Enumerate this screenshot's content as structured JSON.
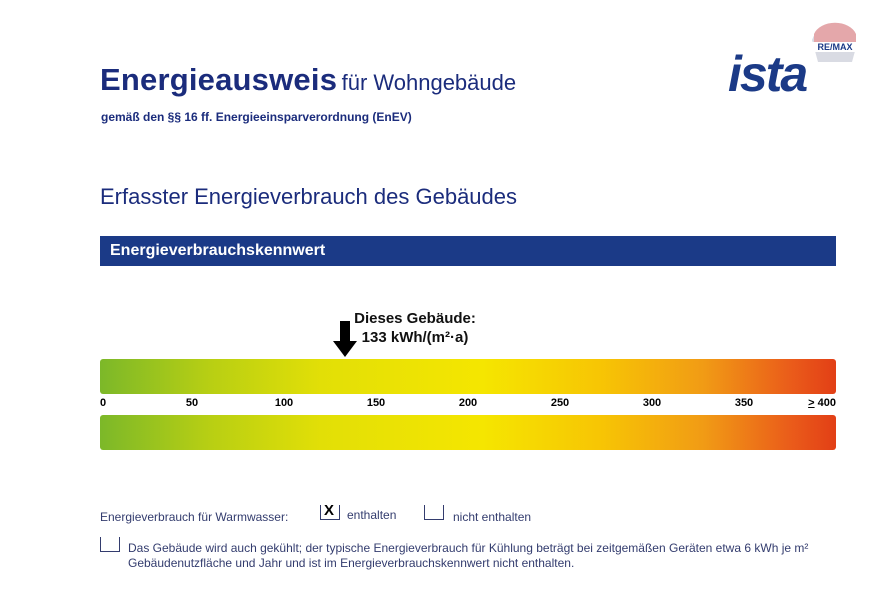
{
  "header": {
    "title_main": "Energieausweis",
    "title_rest": "für Wohngebäude",
    "subtitle": "gemäß den §§ 16 ff. Energieeinsparverordnung (EnEV)",
    "logo_text": "ista",
    "logo_badge": "RE/MAX"
  },
  "section": {
    "title": "Erfasster Energieverbrauch des Gebäudes",
    "bar_title": "Energieverbrauchskennwert"
  },
  "indicator": {
    "label": "Dieses Gebäude:",
    "value_text": "133 kWh/(m²·a)",
    "value": 133
  },
  "scale": {
    "min": 0,
    "max": 400,
    "ticks": [
      "0",
      "50",
      "100",
      "150",
      "200",
      "250",
      "300",
      "350"
    ],
    "last_prefix": ">",
    "last_tick": " 400",
    "colors": [
      "#7cb829",
      "#f5e600",
      "#e23f16"
    ]
  },
  "warmwasser": {
    "label": "Energieverbrauch für Warmwasser:",
    "option_yes_mark": "X",
    "option_yes": "enthalten",
    "option_no": "nicht enthalten",
    "selected": "enthalten"
  },
  "cooling": {
    "text": "Das Gebäude wird auch gekühlt; der typische Energieverbrauch für Kühlung beträgt bei zeitgemäßen Geräten etwa 6 kWh je m² Gebäudenutzfläche und Jahr und ist im Energieverbrauchskennwert nicht enthalten."
  }
}
